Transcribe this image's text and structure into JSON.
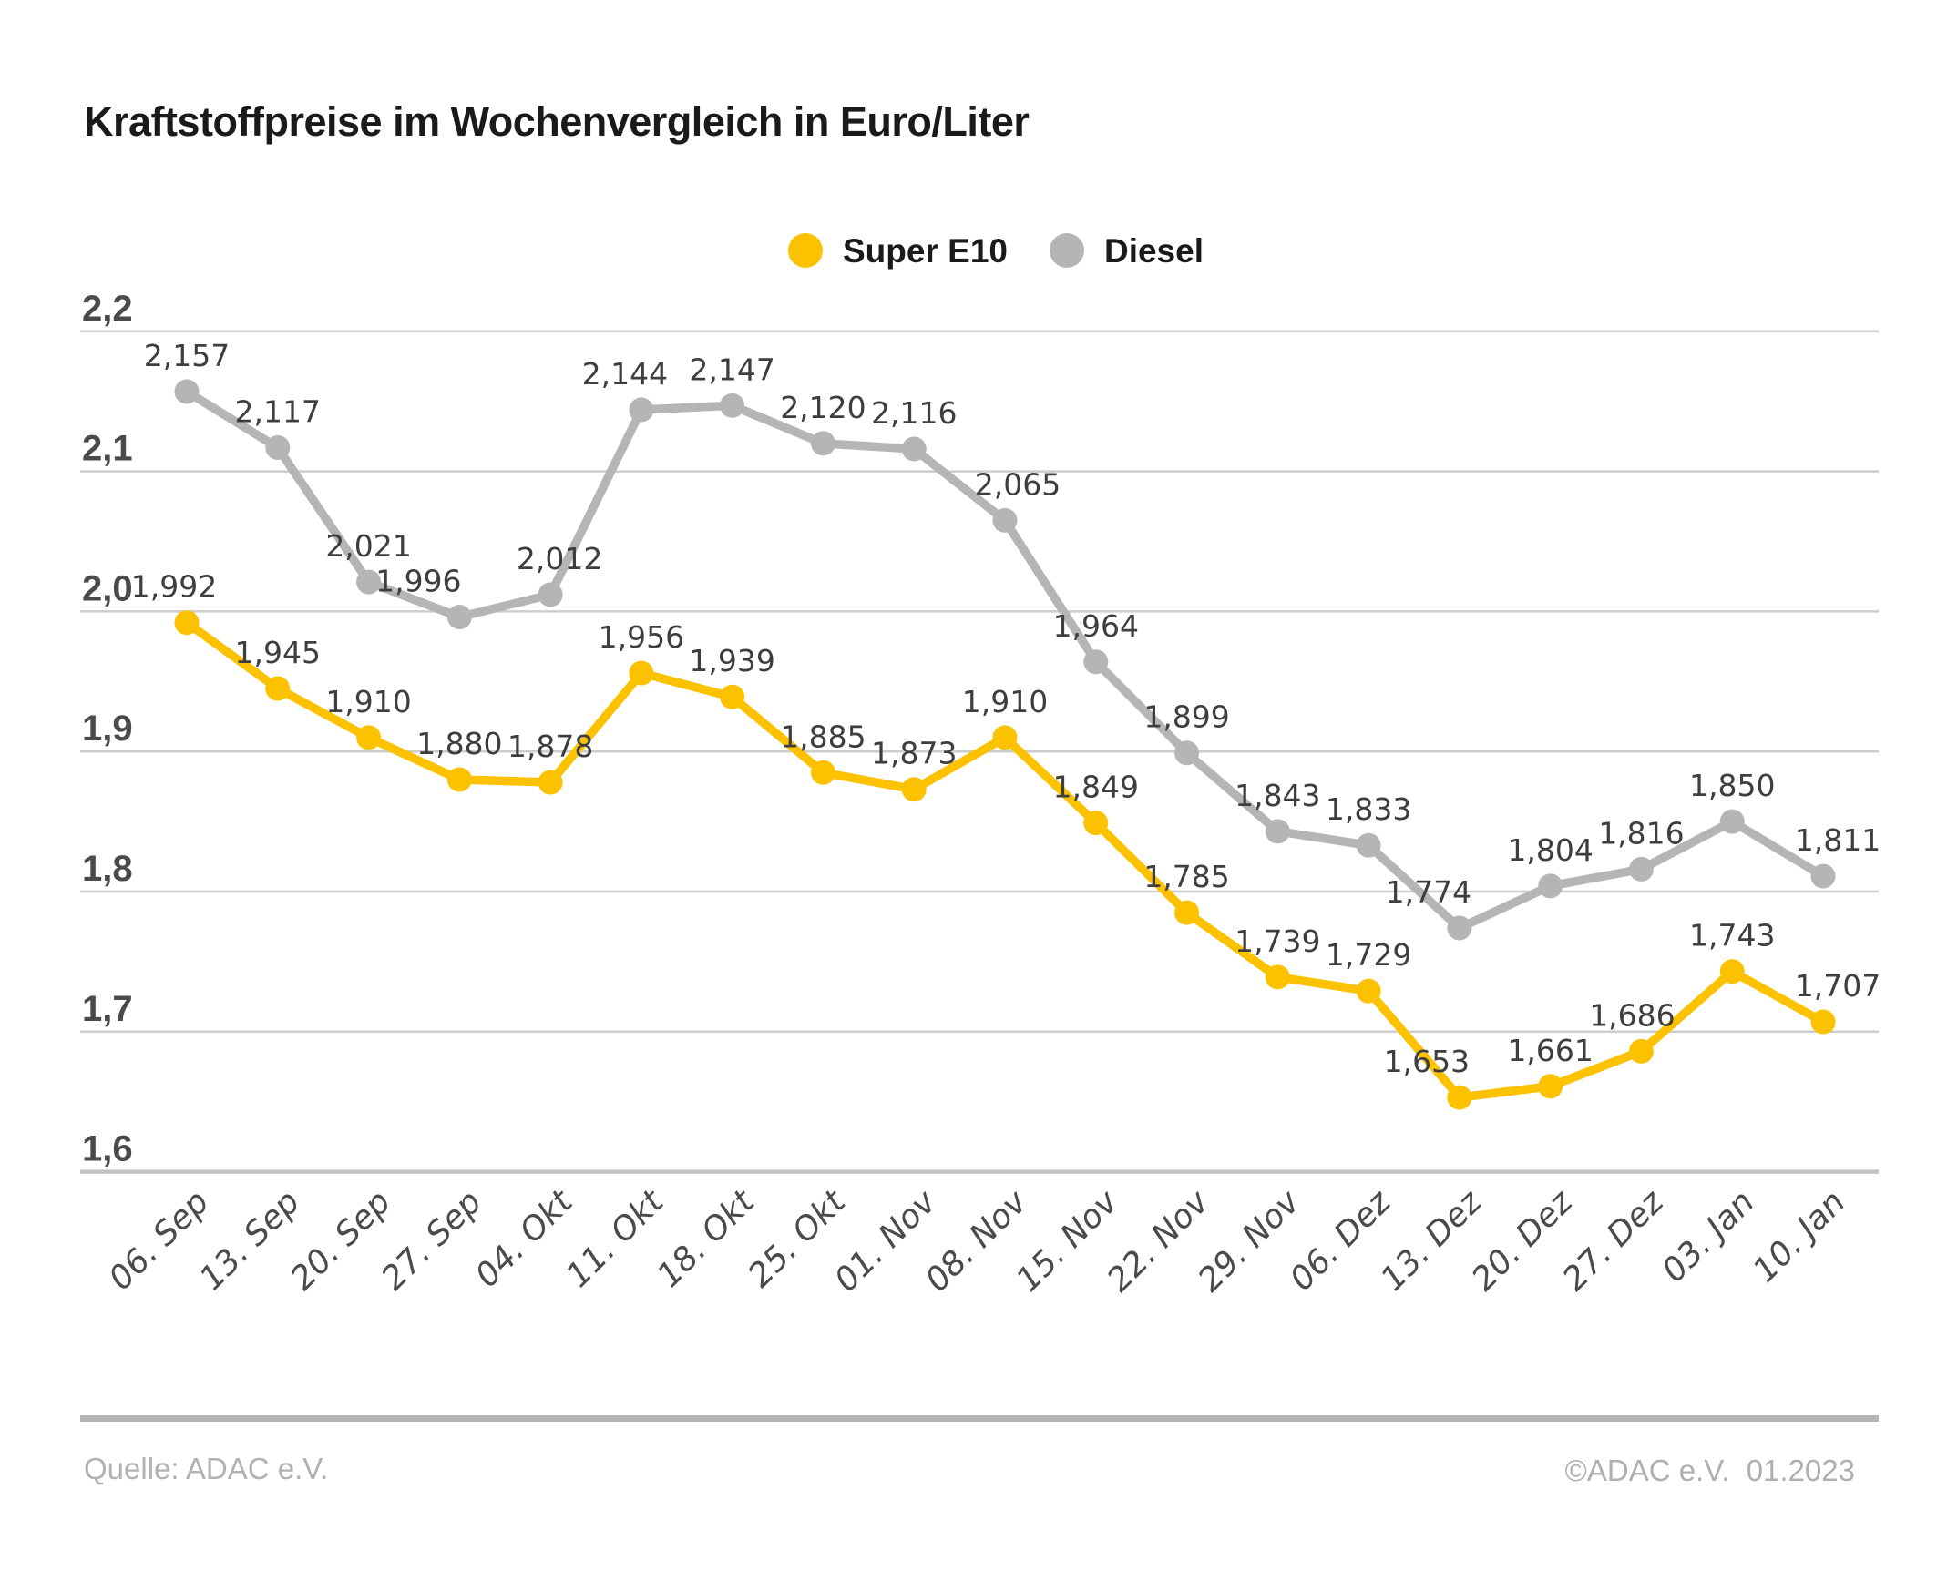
{
  "title": "Kraftstoffpreise im Wochenvergleich in Euro/Liter",
  "legend": [
    {
      "label": "Super E10",
      "color": "#FCC200"
    },
    {
      "label": "Diesel",
      "color": "#B5B5B5"
    }
  ],
  "chart_data": {
    "type": "line",
    "title": "Kraftstoffpreise im Wochenvergleich in Euro/Liter",
    "unit": "Euro/Liter",
    "categories": [
      "06. Sep",
      "13. Sep",
      "20. Sep",
      "27. Sep",
      "04. Okt",
      "11. Okt",
      "18. Okt",
      "25. Okt",
      "01. Nov",
      "08. Nov",
      "15. Nov",
      "22. Nov",
      "29. Nov",
      "06. Dez",
      "13. Dez",
      "20. Dez",
      "27. Dez",
      "03. Jan",
      "10. Jan"
    ],
    "series": [
      {
        "name": "Super E10",
        "color": "#FCC200",
        "values": [
          1.992,
          1.945,
          1.91,
          1.88,
          1.878,
          1.956,
          1.939,
          1.885,
          1.873,
          1.91,
          1.849,
          1.785,
          1.739,
          1.729,
          1.653,
          1.661,
          1.686,
          1.743,
          1.707
        ],
        "labels": [
          "1,992",
          "1,945",
          "1,910",
          "1,880",
          "1,878",
          "1,956",
          "1,939",
          "1,885",
          "1,873",
          "1,910",
          "1,849",
          "1,785",
          "1,739",
          "1,729",
          "1,653",
          "1,661",
          "1,686",
          "1,743",
          "1,707"
        ]
      },
      {
        "name": "Diesel",
        "color": "#B5B5B5",
        "values": [
          2.157,
          2.117,
          2.021,
          1.996,
          2.012,
          2.144,
          2.147,
          2.12,
          2.116,
          2.065,
          1.964,
          1.899,
          1.843,
          1.833,
          1.774,
          1.804,
          1.816,
          1.85,
          1.811
        ],
        "labels": [
          "2,157",
          "2,117",
          "2,021",
          "1,996",
          "2,012",
          "2,144",
          "2,147",
          "2,120",
          "2,116",
          "2,065",
          "1,964",
          "1,899",
          "1,843",
          "1,833",
          "1,774",
          "1,804",
          "1,816",
          "1,850",
          "1,811"
        ]
      }
    ],
    "ylim": [
      1.6,
      2.2
    ],
    "yticks": [
      {
        "value": 2.2,
        "label": "2,2"
      },
      {
        "value": 2.1,
        "label": "2,1"
      },
      {
        "value": 2.0,
        "label": "2,0"
      },
      {
        "value": 1.9,
        "label": "1,9"
      },
      {
        "value": 1.8,
        "label": "1,8"
      },
      {
        "value": 1.7,
        "label": "1,7"
      },
      {
        "value": 1.6,
        "label": "1,6"
      }
    ],
    "grid": true,
    "legend_position": "top-center"
  },
  "footer": {
    "source": "Quelle: ADAC e.V.",
    "copyright": "©ADAC e.V.  01.2023"
  },
  "colors": {
    "grid": "#CDCDCD",
    "baseline": "#C2C2C2",
    "axis_text": "#4A4A4A",
    "data_label": "#3E3E3E",
    "separator": "#B4B4B4",
    "footer_text": "#B2B2B2",
    "background": "#FFFFFF"
  }
}
